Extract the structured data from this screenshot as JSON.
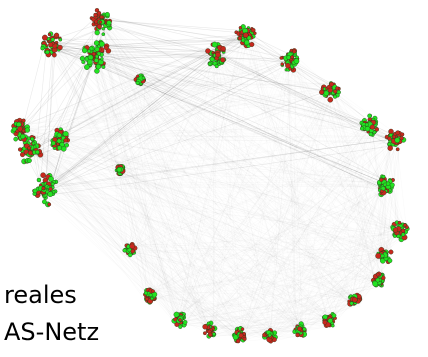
{
  "figure": {
    "caption_line1": "reales",
    "caption_line2": "AS-Netz"
  },
  "colors": {
    "node_green": "#22e322",
    "node_red": "#c8281e",
    "node_stroke": "#2a3a1a",
    "edge": "#000000"
  }
}
